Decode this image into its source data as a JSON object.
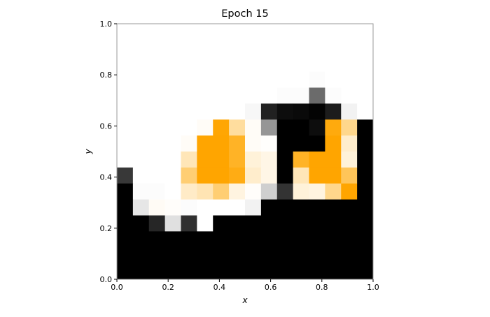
{
  "chart_data": {
    "type": "heatmap",
    "title": "Epoch 15",
    "xlabel": "x",
    "ylabel": "y",
    "xlim": [
      0,
      1
    ],
    "ylim": [
      0,
      1
    ],
    "xticks": [
      "0.0",
      "0.2",
      "0.4",
      "0.6",
      "0.8",
      "1.0"
    ],
    "yticks": [
      "0.0",
      "0.2",
      "0.4",
      "0.6",
      "0.8",
      "1.0"
    ],
    "grid": false,
    "legend": "none",
    "colors": {
      "empty": "#ffffff",
      "dark": "#000000",
      "accent": "#ffa500",
      "frame": "#999999"
    },
    "grid_size": [
      16,
      16
    ],
    "row_order": "top-to-bottom",
    "value_legend": "0 = white (empty), -1 = black (dark region), between 0 and -1 = grey shade; 0 to 1 = white to orange",
    "cells": [
      [
        0,
        0,
        0,
        0,
        0,
        0,
        0,
        0,
        0,
        0,
        0,
        0,
        0,
        0,
        0,
        0
      ],
      [
        0,
        0,
        0,
        0,
        0,
        0,
        0,
        0,
        0,
        0,
        0,
        0,
        0,
        0,
        0,
        0
      ],
      [
        0,
        0,
        0,
        0,
        0,
        0,
        0,
        0,
        0,
        0,
        0,
        0,
        0,
        0,
        0,
        0
      ],
      [
        0,
        0,
        0,
        0,
        0,
        0,
        0,
        0,
        0,
        0,
        0,
        0,
        -0.01,
        0,
        0,
        0
      ],
      [
        0,
        0,
        0,
        0,
        0,
        0,
        0,
        0,
        0,
        0,
        -0.01,
        -0.01,
        -0.58,
        -0.01,
        0,
        0
      ],
      [
        0,
        0,
        0,
        0,
        0,
        0,
        0,
        0,
        -0.03,
        -0.87,
        -0.95,
        -0.96,
        -0.99,
        -0.89,
        -0.05,
        0
      ],
      [
        0,
        0,
        0,
        0,
        0,
        0.03,
        0.99,
        0.38,
        0.03,
        -0.41,
        -1,
        -1,
        -0.95,
        0.95,
        0.45,
        -1
      ],
      [
        0,
        0,
        0,
        0,
        0.03,
        1,
        1,
        0.85,
        0.03,
        0.01,
        -1,
        -1,
        -1,
        1,
        0.2,
        -1
      ],
      [
        0,
        0,
        0,
        0,
        0.28,
        1,
        1,
        0.85,
        0.15,
        0.1,
        -1,
        0.85,
        1,
        1,
        0.15,
        -1
      ],
      [
        -0.78,
        0,
        0,
        0,
        0.55,
        1,
        1,
        0.92,
        0.2,
        0.1,
        -1,
        0.28,
        1,
        1,
        0.65,
        -1
      ],
      [
        -1,
        -0.01,
        -0.01,
        0,
        0.22,
        0.3,
        0.55,
        0.12,
        0.02,
        -0.19,
        -0.8,
        0.15,
        0.12,
        0.45,
        1,
        -1
      ],
      [
        -1,
        -0.1,
        0.04,
        0.02,
        -0.01,
        0,
        0,
        0,
        -0.05,
        -1,
        -1,
        -1,
        -1,
        -1,
        -1,
        -1
      ],
      [
        -1,
        -1,
        -0.85,
        -0.12,
        -0.81,
        0,
        -1,
        -1,
        -1,
        -1,
        -1,
        -1,
        -1,
        -1,
        -1,
        -1
      ],
      [
        -1,
        -1,
        -1,
        -1,
        -1,
        -1,
        -1,
        -1,
        -1,
        -1,
        -1,
        -1,
        -1,
        -1,
        -1,
        -1
      ],
      [
        -1,
        -1,
        -1,
        -1,
        -1,
        -1,
        -1,
        -1,
        -1,
        -1,
        -1,
        -1,
        -1,
        -1,
        -1,
        -1
      ],
      [
        -1,
        -1,
        -1,
        -1,
        -1,
        -1,
        -1,
        -1,
        -1,
        -1,
        -1,
        -1,
        -1,
        -1,
        -1,
        -1
      ]
    ]
  }
}
